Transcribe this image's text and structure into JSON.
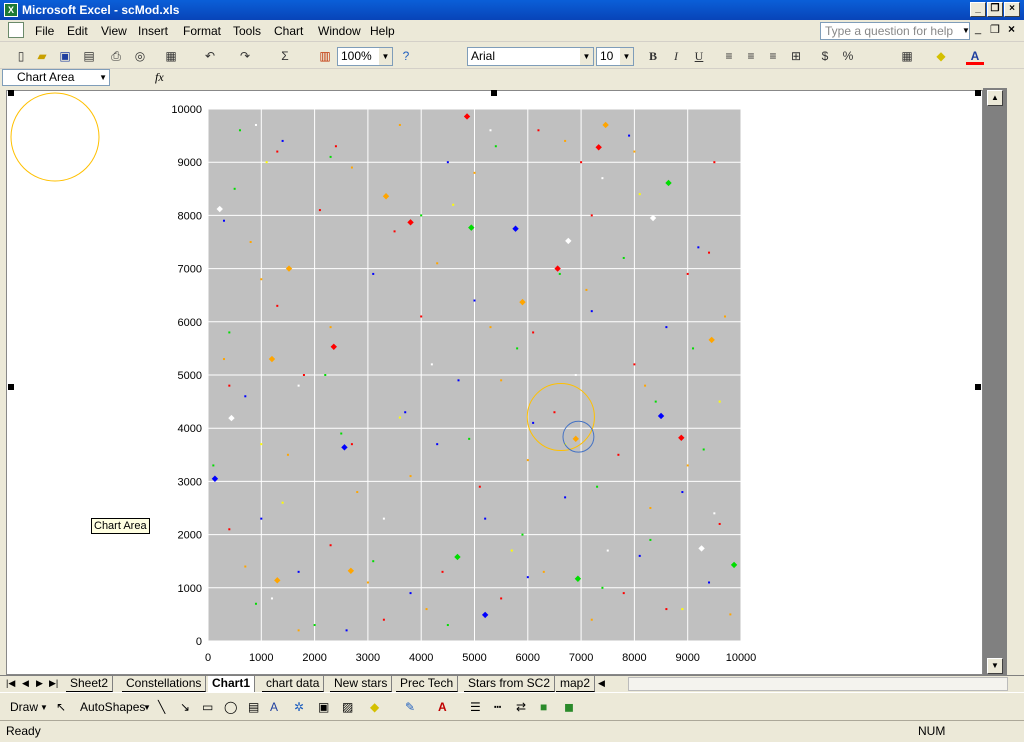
{
  "window": {
    "title": "Microsoft Excel - scMod.xls"
  },
  "menu": {
    "items": [
      "File",
      "Edit",
      "View",
      "Insert",
      "Format",
      "Tools",
      "Chart",
      "Window",
      "Help"
    ],
    "help_placeholder": "Type a question for help"
  },
  "toolbar": {
    "zoom": "100%",
    "font": "Arial",
    "size": "10",
    "bold": "B",
    "italic": "I",
    "underline": "U",
    "currency": "$",
    "percent": "%"
  },
  "formula": {
    "name_box": "Chart Area",
    "fx": "fx"
  },
  "chart_data": {
    "type": "scatter",
    "title": "",
    "xlabel": "",
    "ylabel": "",
    "xlim": [
      0,
      10000
    ],
    "ylim": [
      0,
      10000
    ],
    "xticks": [
      "0",
      "1000",
      "2000",
      "3000",
      "4000",
      "5000",
      "6000",
      "7000",
      "8000",
      "9000",
      "10000"
    ],
    "yticks": [
      "0",
      "1000",
      "2000",
      "3000",
      "4000",
      "5000",
      "6000",
      "7000",
      "8000",
      "9000",
      "10000"
    ],
    "grid": true,
    "colors": {
      "red": "#ff0000",
      "orange": "#ffa500",
      "blue": "#0000ff",
      "green": "#00dd00",
      "yellow": "#ffff00",
      "white": "#ffffff"
    },
    "points": [
      {
        "x": 4860,
        "y": 9860,
        "c": "red",
        "big": true
      },
      {
        "x": 7330,
        "y": 9280,
        "c": "red",
        "big": true
      },
      {
        "x": 3800,
        "y": 7870,
        "c": "red",
        "big": true
      },
      {
        "x": 6560,
        "y": 7000,
        "c": "red",
        "big": true
      },
      {
        "x": 2360,
        "y": 5530,
        "c": "red",
        "big": true
      },
      {
        "x": 8880,
        "y": 3820,
        "c": "red",
        "big": true
      },
      {
        "x": 7460,
        "y": 9700,
        "c": "orange",
        "big": true
      },
      {
        "x": 3340,
        "y": 8360,
        "c": "orange",
        "big": true
      },
      {
        "x": 1520,
        "y": 7000,
        "c": "orange",
        "big": true
      },
      {
        "x": 5900,
        "y": 6370,
        "c": "orange",
        "big": true
      },
      {
        "x": 1200,
        "y": 5300,
        "c": "orange",
        "big": true
      },
      {
        "x": 9450,
        "y": 5660,
        "c": "orange",
        "big": true
      },
      {
        "x": 2680,
        "y": 1320,
        "c": "orange",
        "big": true
      },
      {
        "x": 1300,
        "y": 1140,
        "c": "orange",
        "big": true
      },
      {
        "x": 6900,
        "y": 3800,
        "c": "orange",
        "big": true
      },
      {
        "x": 5770,
        "y": 7750,
        "c": "blue",
        "big": true
      },
      {
        "x": 2560,
        "y": 3640,
        "c": "blue",
        "big": true
      },
      {
        "x": 8500,
        "y": 4230,
        "c": "blue",
        "big": true
      },
      {
        "x": 130,
        "y": 3050,
        "c": "blue",
        "big": true
      },
      {
        "x": 5200,
        "y": 490,
        "c": "blue",
        "big": true
      },
      {
        "x": 8640,
        "y": 8610,
        "c": "green",
        "big": true
      },
      {
        "x": 4940,
        "y": 7770,
        "c": "green",
        "big": true
      },
      {
        "x": 4680,
        "y": 1580,
        "c": "green",
        "big": true
      },
      {
        "x": 6940,
        "y": 1170,
        "c": "green",
        "big": true
      },
      {
        "x": 9870,
        "y": 1430,
        "c": "green",
        "big": true
      },
      {
        "x": 8350,
        "y": 7950,
        "c": "white",
        "big": true
      },
      {
        "x": 6760,
        "y": 7520,
        "c": "white",
        "big": true
      },
      {
        "x": 440,
        "y": 4190,
        "c": "white",
        "big": true
      },
      {
        "x": 9260,
        "y": 1740,
        "c": "white",
        "big": true
      },
      {
        "x": 220,
        "y": 8120,
        "c": "white",
        "big": true
      },
      {
        "x": 1300,
        "y": 9200,
        "c": "red"
      },
      {
        "x": 2400,
        "y": 9300,
        "c": "red"
      },
      {
        "x": 6200,
        "y": 9600,
        "c": "red"
      },
      {
        "x": 9500,
        "y": 9000,
        "c": "red"
      },
      {
        "x": 2100,
        "y": 8100,
        "c": "red"
      },
      {
        "x": 3500,
        "y": 7700,
        "c": "red"
      },
      {
        "x": 7200,
        "y": 8000,
        "c": "red"
      },
      {
        "x": 9000,
        "y": 6900,
        "c": "red"
      },
      {
        "x": 1300,
        "y": 6300,
        "c": "red"
      },
      {
        "x": 4000,
        "y": 6100,
        "c": "red"
      },
      {
        "x": 6100,
        "y": 5800,
        "c": "red"
      },
      {
        "x": 8000,
        "y": 5200,
        "c": "red"
      },
      {
        "x": 400,
        "y": 4800,
        "c": "red"
      },
      {
        "x": 2700,
        "y": 3700,
        "c": "red"
      },
      {
        "x": 6500,
        "y": 4300,
        "c": "red"
      },
      {
        "x": 7700,
        "y": 3500,
        "c": "red"
      },
      {
        "x": 400,
        "y": 2100,
        "c": "red"
      },
      {
        "x": 2300,
        "y": 1800,
        "c": "red"
      },
      {
        "x": 4400,
        "y": 1300,
        "c": "red"
      },
      {
        "x": 5500,
        "y": 800,
        "c": "red"
      },
      {
        "x": 7800,
        "y": 900,
        "c": "red"
      },
      {
        "x": 9600,
        "y": 2200,
        "c": "red"
      },
      {
        "x": 3300,
        "y": 400,
        "c": "red"
      },
      {
        "x": 8600,
        "y": 600,
        "c": "red"
      },
      {
        "x": 1800,
        "y": 5000,
        "c": "red"
      },
      {
        "x": 5100,
        "y": 2900,
        "c": "red"
      },
      {
        "x": 9400,
        "y": 7300,
        "c": "red"
      },
      {
        "x": 7000,
        "y": 9000,
        "c": "red"
      },
      {
        "x": 800,
        "y": 7500,
        "c": "orange"
      },
      {
        "x": 2700,
        "y": 8900,
        "c": "orange"
      },
      {
        "x": 5000,
        "y": 8800,
        "c": "orange"
      },
      {
        "x": 8000,
        "y": 9200,
        "c": "orange"
      },
      {
        "x": 1000,
        "y": 6800,
        "c": "orange"
      },
      {
        "x": 4300,
        "y": 7100,
        "c": "orange"
      },
      {
        "x": 7100,
        "y": 6600,
        "c": "orange"
      },
      {
        "x": 9700,
        "y": 6100,
        "c": "orange"
      },
      {
        "x": 300,
        "y": 5300,
        "c": "orange"
      },
      {
        "x": 2300,
        "y": 5900,
        "c": "orange"
      },
      {
        "x": 5500,
        "y": 4900,
        "c": "orange"
      },
      {
        "x": 8200,
        "y": 4800,
        "c": "orange"
      },
      {
        "x": 1500,
        "y": 3500,
        "c": "orange"
      },
      {
        "x": 3800,
        "y": 3100,
        "c": "orange"
      },
      {
        "x": 6000,
        "y": 3400,
        "c": "orange"
      },
      {
        "x": 9000,
        "y": 3300,
        "c": "orange"
      },
      {
        "x": 700,
        "y": 1400,
        "c": "orange"
      },
      {
        "x": 3000,
        "y": 1100,
        "c": "orange"
      },
      {
        "x": 6300,
        "y": 1300,
        "c": "orange"
      },
      {
        "x": 8300,
        "y": 2500,
        "c": "orange"
      },
      {
        "x": 1700,
        "y": 200,
        "c": "orange"
      },
      {
        "x": 4100,
        "y": 600,
        "c": "orange"
      },
      {
        "x": 7200,
        "y": 400,
        "c": "orange"
      },
      {
        "x": 9800,
        "y": 500,
        "c": "orange"
      },
      {
        "x": 2800,
        "y": 2800,
        "c": "orange"
      },
      {
        "x": 5300,
        "y": 5900,
        "c": "orange"
      },
      {
        "x": 6700,
        "y": 9400,
        "c": "orange"
      },
      {
        "x": 3600,
        "y": 9700,
        "c": "orange"
      },
      {
        "x": 1400,
        "y": 9400,
        "c": "blue"
      },
      {
        "x": 4500,
        "y": 9000,
        "c": "blue"
      },
      {
        "x": 7900,
        "y": 9500,
        "c": "blue"
      },
      {
        "x": 9200,
        "y": 7400,
        "c": "blue"
      },
      {
        "x": 300,
        "y": 7900,
        "c": "blue"
      },
      {
        "x": 3100,
        "y": 6900,
        "c": "blue"
      },
      {
        "x": 5000,
        "y": 6400,
        "c": "blue"
      },
      {
        "x": 7200,
        "y": 6200,
        "c": "blue"
      },
      {
        "x": 700,
        "y": 4600,
        "c": "blue"
      },
      {
        "x": 3700,
        "y": 4300,
        "c": "blue"
      },
      {
        "x": 6100,
        "y": 4100,
        "c": "blue"
      },
      {
        "x": 8600,
        "y": 5900,
        "c": "blue"
      },
      {
        "x": 1000,
        "y": 2300,
        "c": "blue"
      },
      {
        "x": 4300,
        "y": 3700,
        "c": "blue"
      },
      {
        "x": 6700,
        "y": 2700,
        "c": "blue"
      },
      {
        "x": 8900,
        "y": 2800,
        "c": "blue"
      },
      {
        "x": 1700,
        "y": 1300,
        "c": "blue"
      },
      {
        "x": 3800,
        "y": 900,
        "c": "blue"
      },
      {
        "x": 5200,
        "y": 2300,
        "c": "blue"
      },
      {
        "x": 8100,
        "y": 1600,
        "c": "blue"
      },
      {
        "x": 2600,
        "y": 200,
        "c": "blue"
      },
      {
        "x": 6000,
        "y": 1200,
        "c": "blue"
      },
      {
        "x": 9400,
        "y": 1100,
        "c": "blue"
      },
      {
        "x": 4700,
        "y": 4900,
        "c": "blue"
      },
      {
        "x": 600,
        "y": 9600,
        "c": "green"
      },
      {
        "x": 2300,
        "y": 9100,
        "c": "green"
      },
      {
        "x": 5400,
        "y": 9300,
        "c": "green"
      },
      {
        "x": 7800,
        "y": 7200,
        "c": "green"
      },
      {
        "x": 500,
        "y": 8500,
        "c": "green"
      },
      {
        "x": 4000,
        "y": 8000,
        "c": "green"
      },
      {
        "x": 6600,
        "y": 6900,
        "c": "green"
      },
      {
        "x": 9100,
        "y": 5500,
        "c": "green"
      },
      {
        "x": 400,
        "y": 5800,
        "c": "green"
      },
      {
        "x": 2200,
        "y": 5000,
        "c": "green"
      },
      {
        "x": 5800,
        "y": 5500,
        "c": "green"
      },
      {
        "x": 8400,
        "y": 4500,
        "c": "green"
      },
      {
        "x": 100,
        "y": 3300,
        "c": "green"
      },
      {
        "x": 2500,
        "y": 3900,
        "c": "green"
      },
      {
        "x": 4900,
        "y": 3800,
        "c": "green"
      },
      {
        "x": 7300,
        "y": 2900,
        "c": "green"
      },
      {
        "x": 900,
        "y": 700,
        "c": "green"
      },
      {
        "x": 3100,
        "y": 1500,
        "c": "green"
      },
      {
        "x": 5900,
        "y": 2000,
        "c": "green"
      },
      {
        "x": 8300,
        "y": 1900,
        "c": "green"
      },
      {
        "x": 2000,
        "y": 300,
        "c": "green"
      },
      {
        "x": 4500,
        "y": 300,
        "c": "green"
      },
      {
        "x": 7400,
        "y": 1000,
        "c": "green"
      },
      {
        "x": 9300,
        "y": 3600,
        "c": "green"
      },
      {
        "x": 900,
        "y": 9700,
        "c": "white"
      },
      {
        "x": 5300,
        "y": 9600,
        "c": "white"
      },
      {
        "x": 7400,
        "y": 8700,
        "c": "white"
      },
      {
        "x": 4200,
        "y": 5200,
        "c": "white"
      },
      {
        "x": 1700,
        "y": 4800,
        "c": "white"
      },
      {
        "x": 6900,
        "y": 5000,
        "c": "white"
      },
      {
        "x": 1200,
        "y": 800,
        "c": "white"
      },
      {
        "x": 7500,
        "y": 1700,
        "c": "white"
      },
      {
        "x": 9500,
        "y": 2400,
        "c": "white"
      },
      {
        "x": 3300,
        "y": 2300,
        "c": "white"
      },
      {
        "x": 1100,
        "y": 9000,
        "c": "yellow"
      },
      {
        "x": 4600,
        "y": 8200,
        "c": "yellow"
      },
      {
        "x": 8100,
        "y": 8400,
        "c": "yellow"
      },
      {
        "x": 1000,
        "y": 3700,
        "c": "yellow"
      },
      {
        "x": 3600,
        "y": 4200,
        "c": "yellow"
      },
      {
        "x": 6700,
        "y": 3700,
        "c": "yellow"
      },
      {
        "x": 9600,
        "y": 4500,
        "c": "yellow"
      },
      {
        "x": 1400,
        "y": 2600,
        "c": "yellow"
      },
      {
        "x": 5700,
        "y": 1700,
        "c": "yellow"
      },
      {
        "x": 8900,
        "y": 600,
        "c": "yellow"
      }
    ],
    "circles": [
      {
        "cx": 6620,
        "cy": 4210,
        "r": 630,
        "color": "#ffc000"
      },
      {
        "cx": 6950,
        "cy": 3840,
        "r": 290,
        "color": "#4472c4"
      }
    ]
  },
  "tooltip": {
    "text": "Chart Area"
  },
  "tabs": {
    "items": [
      "Sheet2",
      "Constellations",
      "Chart1",
      "chart data",
      "New stars",
      "Prec Tech",
      "Stars from SC2",
      "map2"
    ],
    "active": "Chart1"
  },
  "drawing": {
    "draw": "Draw",
    "autoshapes": "AutoShapes"
  },
  "status": {
    "text": "Ready",
    "num": "NUM"
  }
}
